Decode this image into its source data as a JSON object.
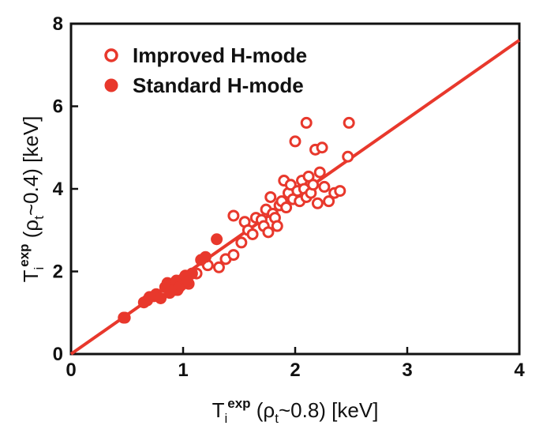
{
  "chart_data": {
    "type": "scatter",
    "xlim": [
      0,
      4
    ],
    "ylim": [
      0,
      8
    ],
    "x_ticks": [
      "0",
      "1",
      "2",
      "3",
      "4"
    ],
    "y_ticks": [
      "0",
      "2",
      "4",
      "6",
      "8"
    ],
    "xlabel": {
      "base": "T",
      "sub": "i",
      "sup": "exp",
      "paren_open": " (ρ",
      "paren_sub": "t",
      "paren_rest": "~0.8) [keV]"
    },
    "ylabel": {
      "base": "T",
      "sub": "i",
      "sup": "exp",
      "paren_open": " (ρ",
      "paren_sub": "t",
      "paren_rest": "~0.4) [keV]"
    },
    "legend_position": "top-left",
    "grid": false,
    "color": "#e8382c",
    "fit_line": {
      "x": [
        0,
        4
      ],
      "y": [
        0,
        7.6
      ]
    },
    "series": [
      {
        "name": "Improved H-mode",
        "marker": "open-circle",
        "points": [
          [
            0.48,
            0.88
          ],
          [
            0.68,
            1.3
          ],
          [
            0.74,
            1.4
          ],
          [
            0.95,
            1.55
          ],
          [
            1.05,
            1.7
          ],
          [
            1.12,
            1.95
          ],
          [
            1.22,
            2.15
          ],
          [
            1.32,
            2.1
          ],
          [
            1.38,
            2.3
          ],
          [
            1.45,
            2.4
          ],
          [
            1.45,
            3.35
          ],
          [
            1.52,
            2.7
          ],
          [
            1.55,
            3.2
          ],
          [
            1.58,
            3.0
          ],
          [
            1.62,
            2.9
          ],
          [
            1.65,
            3.3
          ],
          [
            1.7,
            3.25
          ],
          [
            1.72,
            3.1
          ],
          [
            1.74,
            3.5
          ],
          [
            1.76,
            2.95
          ],
          [
            1.78,
            3.8
          ],
          [
            1.8,
            3.4
          ],
          [
            1.82,
            3.3
          ],
          [
            1.84,
            3.1
          ],
          [
            1.86,
            3.6
          ],
          [
            1.88,
            3.7
          ],
          [
            1.9,
            4.2
          ],
          [
            1.92,
            3.55
          ],
          [
            1.94,
            3.9
          ],
          [
            1.96,
            4.1
          ],
          [
            1.98,
            3.75
          ],
          [
            2.0,
            5.15
          ],
          [
            2.02,
            3.95
          ],
          [
            2.04,
            3.7
          ],
          [
            2.06,
            4.2
          ],
          [
            2.08,
            4.0
          ],
          [
            2.1,
            3.8
          ],
          [
            2.1,
            5.6
          ],
          [
            2.12,
            4.3
          ],
          [
            2.14,
            3.9
          ],
          [
            2.16,
            4.1
          ],
          [
            2.18,
            4.95
          ],
          [
            2.2,
            3.65
          ],
          [
            2.22,
            4.4
          ],
          [
            2.24,
            5.0
          ],
          [
            2.26,
            4.05
          ],
          [
            2.3,
            3.7
          ],
          [
            2.35,
            3.9
          ],
          [
            2.4,
            3.95
          ],
          [
            2.47,
            4.78
          ],
          [
            2.48,
            5.6
          ]
        ]
      },
      {
        "name": "Standard H-mode",
        "marker": "filled-circle",
        "points": [
          [
            0.47,
            0.88
          ],
          [
            0.65,
            1.25
          ],
          [
            0.7,
            1.38
          ],
          [
            0.76,
            1.45
          ],
          [
            0.8,
            1.35
          ],
          [
            0.84,
            1.62
          ],
          [
            0.86,
            1.72
          ],
          [
            0.88,
            1.48
          ],
          [
            0.9,
            1.7
          ],
          [
            0.92,
            1.55
          ],
          [
            0.94,
            1.78
          ],
          [
            0.96,
            1.6
          ],
          [
            0.98,
            1.66
          ],
          [
            1.0,
            1.82
          ],
          [
            1.02,
            1.9
          ],
          [
            1.04,
            1.75
          ],
          [
            1.08,
            1.95
          ],
          [
            1.16,
            2.28
          ],
          [
            1.2,
            2.35
          ],
          [
            1.3,
            2.78
          ]
        ]
      }
    ]
  }
}
